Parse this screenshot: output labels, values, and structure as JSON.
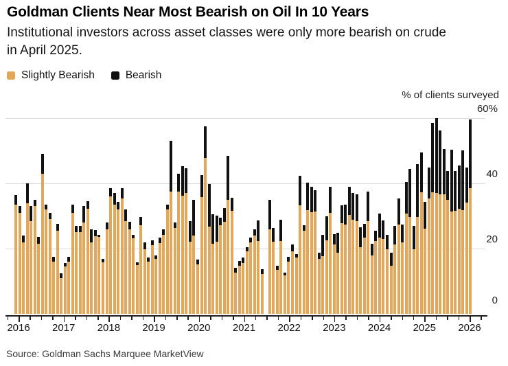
{
  "header": {
    "title": "Goldman Clients Near Most Bearish on Oil In 10 Years",
    "subtitle": "Institutional investors across asset classes were only more bearish on crude in April 2025."
  },
  "legend": {
    "items": [
      {
        "label": "Slightly Bearish",
        "color": "#E3A75C"
      },
      {
        "label": "Bearish",
        "color": "#111111"
      }
    ]
  },
  "chart": {
    "y_axis_title": "% of clients surveyed"
  },
  "footer": {
    "source": "Source: Goldman Sachs Marquee MarketView"
  },
  "colors": {
    "slightly_bearish": "#E3A75C",
    "bearish": "#111111",
    "gridline": "#D9D9D9",
    "axis": "#1f1f1f",
    "background": "#ffffff"
  },
  "chart_data": {
    "type": "bar",
    "stacked": true,
    "title": "Goldman Clients Near Most Bearish on Oil In 10 Years",
    "ylabel": "% of clients surveyed",
    "ylim": [
      0,
      60
    ],
    "yticks": [
      0,
      20,
      40,
      60
    ],
    "ytick_labels": [
      "0",
      "20",
      "40",
      "60%"
    ],
    "x_interval": "monthly",
    "x_start": "2016-01",
    "x_end": "2026-01",
    "x_tick_labels": [
      "2016",
      "2017",
      "2018",
      "2019",
      "2020",
      "2021",
      "2022",
      "2023",
      "2024",
      "2025",
      "2026"
    ],
    "grid": "horizontal",
    "legend_position": "top-left",
    "series_names": [
      "Slightly Bearish",
      "Bearish"
    ],
    "values_format": "per month: [slightly_bearish_pct, bearish_pct]; null = no survey that month",
    "missing": [
      "2021-07"
    ],
    "values": [
      [
        33.5,
        3
      ],
      [
        31,
        2
      ],
      [
        22,
        2
      ],
      [
        34,
        6
      ],
      [
        28.5,
        4.5
      ],
      [
        33,
        2
      ],
      [
        21.5,
        2
      ],
      [
        43,
        6
      ],
      [
        32,
        1.5
      ],
      [
        29,
        2
      ],
      [
        16,
        1.5
      ],
      [
        25.5,
        2
      ],
      [
        11,
        1.5
      ],
      [
        14.5,
        1
      ],
      [
        16,
        1.5
      ],
      [
        31,
        2.5
      ],
      [
        25,
        2
      ],
      [
        25,
        2
      ],
      [
        28,
        5
      ],
      [
        32.3,
        2.2
      ],
      [
        22,
        4
      ],
      [
        23.8,
        1.8
      ],
      [
        23.5,
        0.7
      ],
      [
        15.7,
        1.1
      ],
      [
        26,
        2
      ],
      [
        36,
        2.6
      ],
      [
        33.5,
        3.5
      ],
      [
        32,
        2.4
      ],
      [
        35.4,
        3.2
      ],
      [
        28.4,
        3.6
      ],
      [
        26,
        2.3
      ],
      [
        23.2,
        1
      ],
      [
        15,
        0.7
      ],
      [
        27.2,
        2.5
      ],
      [
        19.8,
        2.1
      ],
      [
        16.1,
        1.1
      ],
      [
        21,
        1.5
      ],
      [
        16.9,
        1.1
      ],
      [
        21.6,
        1.7
      ],
      [
        24.2,
        1.7
      ],
      [
        32,
        1.5
      ],
      [
        37.4,
        15.6
      ],
      [
        26.3,
        1.7
      ],
      [
        37.4,
        5.5
      ],
      [
        36.3,
        9
      ],
      [
        37,
        7.6
      ],
      [
        22.1,
        6.3
      ],
      [
        24,
        11
      ],
      [
        15.2,
        1.4
      ],
      [
        35.7,
        6.9
      ],
      [
        47.8,
        9.7
      ],
      [
        26.7,
        13
      ],
      [
        21.5,
        9
      ],
      [
        22.2,
        7.9
      ],
      [
        27.2,
        2.2
      ],
      [
        28.3,
        4.2
      ],
      [
        35,
        13.4
      ],
      [
        31.5,
        4.2
      ],
      [
        12.6,
        1.5
      ],
      [
        14.8,
        1.4
      ],
      [
        15.5,
        1.8
      ],
      [
        19.1,
        1.4
      ],
      [
        21.9,
        1.4
      ],
      [
        24,
        2
      ],
      [
        22.4,
        6.3
      ],
      [
        12.3,
        1.4
      ],
      null,
      [
        25.9,
        9.1
      ],
      [
        22.1,
        4.2
      ],
      [
        13.4,
        1.4
      ],
      [
        22.3,
        6.6
      ],
      [
        11.7,
        1
      ],
      [
        16.1,
        1.4
      ],
      [
        19.1,
        2.1
      ],
      [
        17.3,
        1.1
      ],
      [
        33.2,
        9.1
      ],
      [
        25.5,
        1.7
      ],
      [
        31.8,
        8.4
      ],
      [
        31.1,
        7.9
      ],
      [
        31.4,
        6.5
      ],
      [
        16.8,
        2
      ],
      [
        17.6,
        6.7
      ],
      [
        22.5,
        7.4
      ],
      [
        31,
        7.9
      ],
      [
        21.2,
        3.2
      ],
      [
        18.8,
        6
      ],
      [
        27.7,
        5.5
      ],
      [
        27.4,
        6
      ],
      [
        30.4,
        8.6
      ],
      [
        28.9,
        8.1
      ],
      [
        28.4,
        8.2
      ],
      [
        20.5,
        6
      ],
      [
        23.3,
        4.3
      ],
      [
        28.4,
        9.1
      ],
      [
        18,
        3.5
      ],
      [
        22.3,
        3.2
      ],
      [
        23.3,
        7.5
      ],
      [
        22.9,
        5.8
      ],
      [
        19.8,
        4.5
      ],
      [
        14.8,
        3.9
      ],
      [
        21.2,
        5.7
      ],
      [
        27.4,
        8
      ],
      [
        21.9,
        5.5
      ],
      [
        30.8,
        9.7
      ],
      [
        29.6,
        14.9
      ],
      [
        19.8,
        7.2
      ],
      [
        29.6,
        16.3
      ],
      [
        37.2,
        12.3
      ],
      [
        26.2,
        8.2
      ],
      [
        35.4,
        9.4
      ],
      [
        37.2,
        21.3
      ],
      [
        37,
        23
      ],
      [
        36.6,
        19.6
      ],
      [
        36.6,
        13.9
      ],
      [
        34.9,
        8.9
      ],
      [
        31.3,
        19
      ],
      [
        31.6,
        12.2
      ],
      [
        32.3,
        13.2
      ],
      [
        31.9,
        18.3
      ],
      [
        34.2,
        10.6
      ],
      [
        38.5,
        21
      ]
    ]
  }
}
